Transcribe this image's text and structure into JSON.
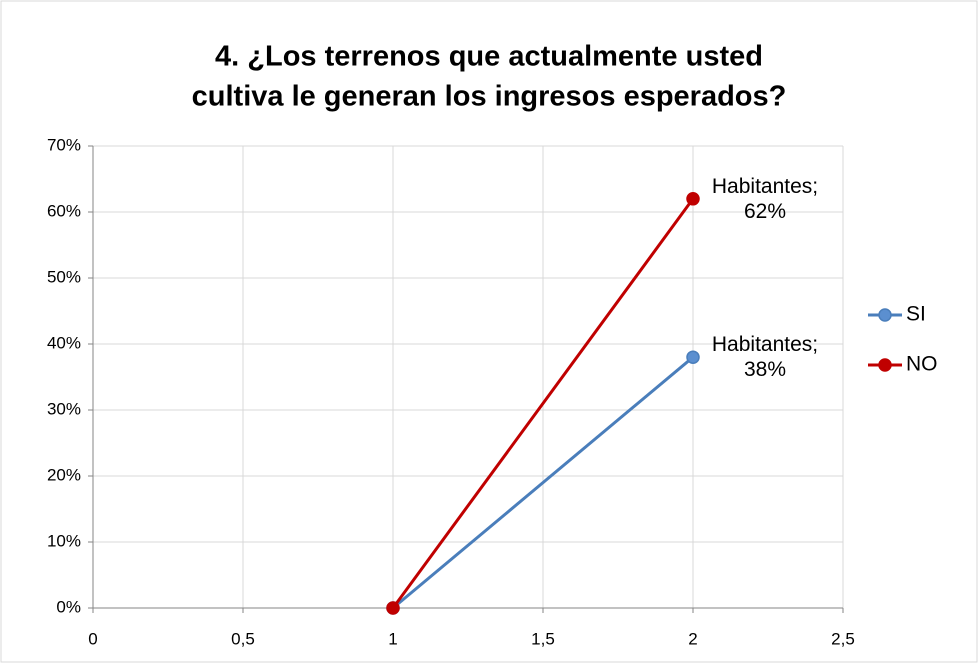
{
  "chart_data": {
    "type": "line",
    "title": [
      "4. ¿Los terrenos que actualmente usted",
      "cultiva le generan los ingresos esperados?"
    ],
    "x": [
      1,
      2
    ],
    "series": [
      {
        "name": "SI",
        "color": "#4a7ebb",
        "marker_color": "#5b8fd0",
        "values": [
          0,
          38
        ],
        "value_labels": [
          null,
          "Habitantes; 38%"
        ]
      },
      {
        "name": "NO",
        "color": "#c00000",
        "marker_color": "#c00000",
        "values": [
          0,
          62
        ],
        "value_labels": [
          null,
          "Habitantes; 62%"
        ]
      }
    ],
    "xlim": [
      0,
      2.5
    ],
    "xticks": [
      0,
      {
        "value": 0.5,
        "label": "0,5"
      },
      1,
      {
        "value": 1.5,
        "label": "1,5"
      },
      2,
      {
        "value": 2.5,
        "label": "2,5"
      }
    ],
    "ylim": [
      0,
      70
    ],
    "yticks": [
      {
        "value": 0,
        "label": "0%"
      },
      {
        "value": 10,
        "label": "10%"
      },
      {
        "value": 20,
        "label": "20%"
      },
      {
        "value": 30,
        "label": "30%"
      },
      {
        "value": 40,
        "label": "40%"
      },
      {
        "value": 50,
        "label": "50%"
      },
      {
        "value": 60,
        "label": "60%"
      },
      {
        "value": 70,
        "label": "70%"
      }
    ],
    "grid": true,
    "legend": "right"
  }
}
